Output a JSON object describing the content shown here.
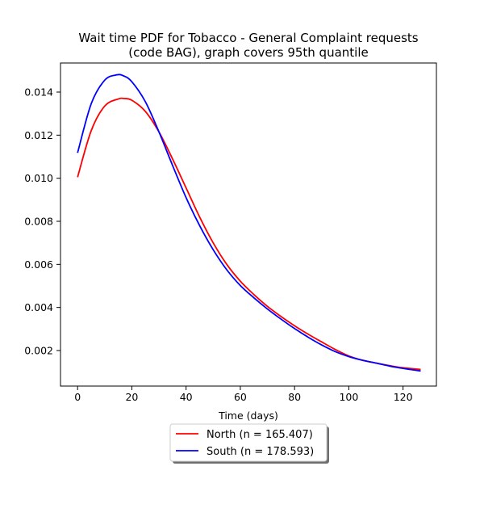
{
  "chart_data": {
    "type": "line",
    "title_lines": [
      "Wait time PDF for Tobacco - General Complaint  requests",
      "(code BAG), graph covers 95th quantile"
    ],
    "xlabel": "Time (days)",
    "ylabel": "",
    "xlim": [
      -6.3,
      132.3
    ],
    "ylim": [
      0.00035,
      0.01535
    ],
    "x_ticks": [
      0,
      20,
      40,
      60,
      80,
      100,
      120
    ],
    "x_tick_labels": [
      "0",
      "20",
      "40",
      "60",
      "80",
      "100",
      "120"
    ],
    "y_ticks": [
      0.002,
      0.004,
      0.006,
      0.008,
      0.01,
      0.012,
      0.014
    ],
    "y_tick_labels": [
      "0.002",
      "0.004",
      "0.006",
      "0.008",
      "0.010",
      "0.012",
      "0.014"
    ],
    "grid": false,
    "legend_position": "below",
    "series": [
      {
        "name": "North (n = 165.407)",
        "color": "#ff0000",
        "points": [
          [
            0,
            0.01005
          ],
          [
            5,
            0.0122
          ],
          [
            10,
            0.01335
          ],
          [
            15,
            0.01368
          ],
          [
            17,
            0.0137
          ],
          [
            20,
            0.01362
          ],
          [
            25,
            0.0131
          ],
          [
            30,
            0.01215
          ],
          [
            35,
            0.0109
          ],
          [
            40,
            0.00955
          ],
          [
            45,
            0.0082
          ],
          [
            50,
            0.007
          ],
          [
            55,
            0.006
          ],
          [
            60,
            0.00522
          ],
          [
            65,
            0.0046
          ],
          [
            70,
            0.00405
          ],
          [
            75,
            0.00358
          ],
          [
            80,
            0.00315
          ],
          [
            85,
            0.00276
          ],
          [
            90,
            0.0024
          ],
          [
            95,
            0.00205
          ],
          [
            100,
            0.00175
          ],
          [
            105,
            0.00155
          ],
          [
            110,
            0.00142
          ],
          [
            115,
            0.0013
          ],
          [
            120,
            0.0012
          ],
          [
            126.5,
            0.00112
          ]
        ]
      },
      {
        "name": "South (n = 178.593)",
        "color": "#0000ff",
        "points": [
          [
            0,
            0.01118
          ],
          [
            5,
            0.01345
          ],
          [
            10,
            0.01455
          ],
          [
            14.5,
            0.0148
          ],
          [
            17,
            0.01475
          ],
          [
            20,
            0.01448
          ],
          [
            25,
            0.01355
          ],
          [
            30,
            0.01215
          ],
          [
            35,
            0.0106
          ],
          [
            40,
            0.0091
          ],
          [
            45,
            0.0078
          ],
          [
            50,
            0.00668
          ],
          [
            55,
            0.00575
          ],
          [
            60,
            0.00502
          ],
          [
            65,
            0.00445
          ],
          [
            70,
            0.00393
          ],
          [
            75,
            0.00346
          ],
          [
            80,
            0.00302
          ],
          [
            85,
            0.00262
          ],
          [
            90,
            0.00226
          ],
          [
            95,
            0.00195
          ],
          [
            100,
            0.00172
          ],
          [
            105,
            0.00155
          ],
          [
            110,
            0.00142
          ],
          [
            115,
            0.00128
          ],
          [
            120,
            0.00117
          ],
          [
            126.5,
            0.00105
          ]
        ]
      }
    ]
  }
}
